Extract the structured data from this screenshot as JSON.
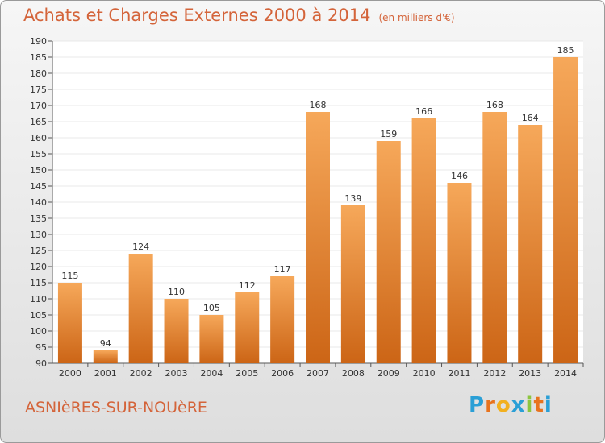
{
  "title": "Achats et Charges Externes 2000 à 2014",
  "subtitle": "(en milliers d'€)",
  "city": "ASNIèRES-SUR-NOUèRE",
  "brand": {
    "letters": [
      "P",
      "r",
      "o",
      "x",
      "i",
      "t",
      "i"
    ],
    "colors": [
      "#2a9fd6",
      "#e8731e",
      "#f2b01e",
      "#2a9fd6",
      "#8cc63f",
      "#e8731e",
      "#2a9fd6"
    ]
  },
  "colors": {
    "bar_top": "#f6a85a",
    "bar_bottom": "#cc6516",
    "grid": "#e9e9e9",
    "plot_bg": "#ffffff",
    "text": "#333333"
  },
  "chart_data": {
    "type": "bar",
    "title": "Achats et Charges Externes 2000 à 2014",
    "categories": [
      "2000",
      "2001",
      "2002",
      "2003",
      "2004",
      "2005",
      "2006",
      "2007",
      "2008",
      "2009",
      "2010",
      "2011",
      "2012",
      "2013",
      "2014"
    ],
    "values": [
      115,
      94,
      124,
      110,
      105,
      112,
      117,
      168,
      139,
      159,
      166,
      146,
      168,
      164,
      185
    ],
    "ylim": [
      90,
      190
    ],
    "ytick_step": 5,
    "grid": true
  }
}
